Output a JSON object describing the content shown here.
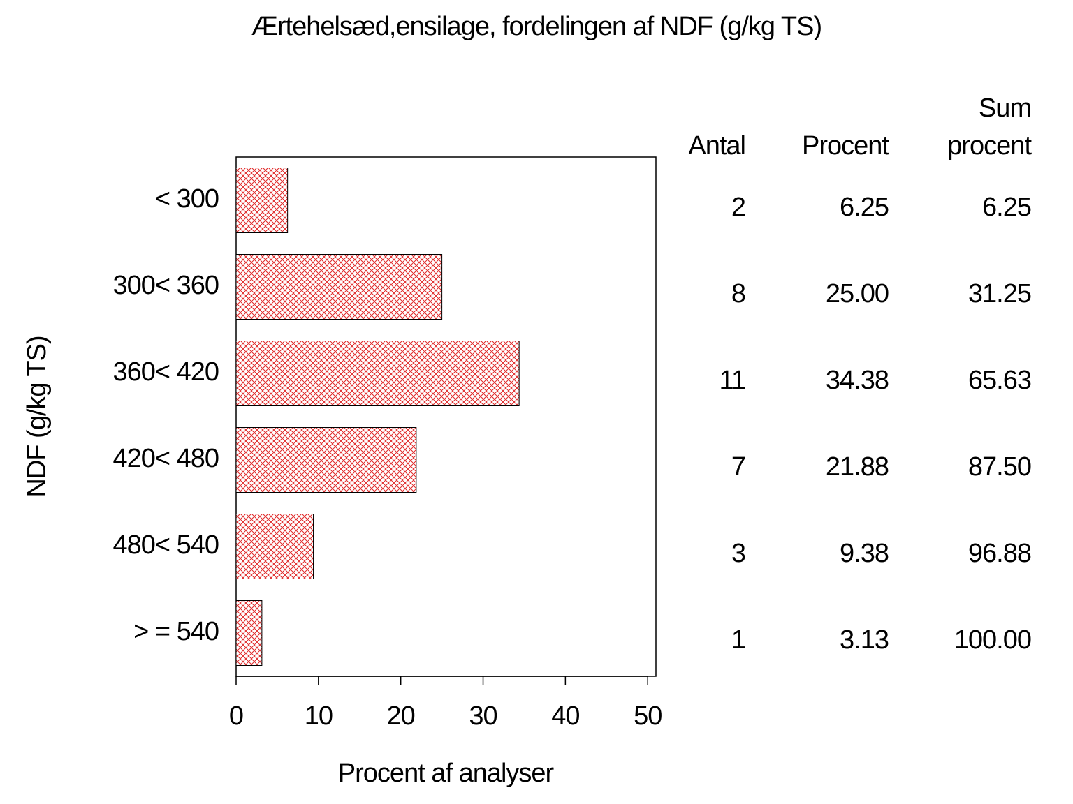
{
  "chart_data": {
    "type": "hbar",
    "title": "Ærtehelsæd,ensilage,  fordelingen  af  NDF  (g/kg  TS)",
    "x_label": "Procent  af  analyser",
    "y_label": "NDF  (g/kg  TS)",
    "categories": [
      "< 300",
      "300< 360",
      "360< 420",
      "420< 480",
      "480< 540",
      "> = 540"
    ],
    "values": [
      6.25,
      25,
      34.38,
      21.88,
      9.38,
      3.13
    ],
    "value_labels": [
      "6.25",
      "25.00",
      "34.38",
      "21.88",
      "9.38",
      "3.13"
    ],
    "counts": [
      2,
      8,
      11,
      7,
      3,
      1
    ],
    "cumulative": [
      6.25,
      31.25,
      65.63,
      87.5,
      96.88,
      100
    ],
    "cumulative_labels": [
      "6.25",
      "31.25",
      "65.63",
      "87.50",
      "96.88",
      "100.00"
    ],
    "table_headers": {
      "count": "Antal",
      "percent": "Procent",
      "cumulative": [
        "Sum",
        "procent"
      ]
    },
    "color": "#e02828",
    "xlim": [
      0,
      51
    ],
    "xticks": [
      0,
      10,
      20,
      30,
      40,
      50
    ]
  }
}
